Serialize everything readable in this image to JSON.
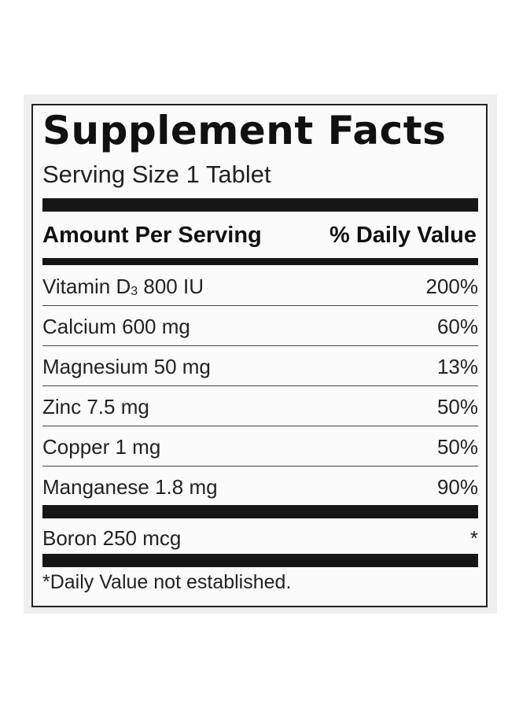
{
  "label": {
    "title": "Supplement Facts",
    "serving_size": "Serving Size 1 Tablet",
    "header_amount": "Amount Per Serving",
    "header_dv": "% Daily Value",
    "nutrients": [
      {
        "name": "Vitamin D",
        "subscript": "3",
        "amount": " 800 IU",
        "dv": "200%"
      },
      {
        "name": "Calcium 600 mg",
        "subscript": "",
        "amount": "",
        "dv": "60%"
      },
      {
        "name": "Magnesium 50 mg",
        "subscript": "",
        "amount": "",
        "dv": "13%"
      },
      {
        "name": "Zinc 7.5 mg",
        "subscript": "",
        "amount": "",
        "dv": "50%"
      },
      {
        "name": "Copper 1 mg",
        "subscript": "",
        "amount": "",
        "dv": "50%"
      },
      {
        "name": "Manganese 1.8 mg",
        "subscript": "",
        "amount": "",
        "dv": "90%"
      }
    ],
    "other": [
      {
        "name": "Boron 250 mcg",
        "dv": "*"
      }
    ],
    "footnote": "*Daily Value not established."
  }
}
